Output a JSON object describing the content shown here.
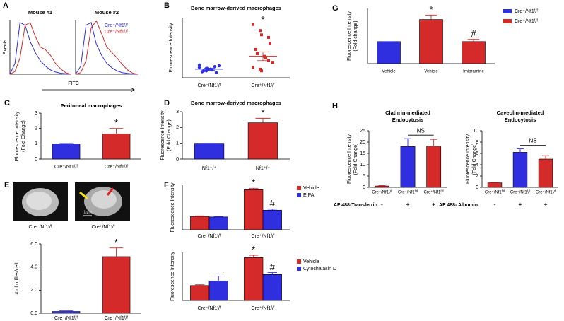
{
  "chart_data": [
    {
      "type": "curves",
      "panel": "A",
      "title": "Mouse #1",
      "ylabel": "Events",
      "xlabel": "FITC",
      "x": [
        0,
        1,
        2,
        3,
        4,
        5,
        6,
        7,
        8,
        9,
        10,
        11,
        12
      ],
      "xlim": [
        0,
        12
      ],
      "ylim": [
        0,
        1
      ],
      "series": [
        {
          "color": "#2f2fe0",
          "values": [
            0,
            0.2,
            0.95,
            0.9,
            0.6,
            0.4,
            0.25,
            0.15,
            0.08,
            0.04,
            0.02,
            0.01,
            0
          ]
        },
        {
          "color": "#d42a2a",
          "values": [
            0,
            0.05,
            0.3,
            0.9,
            0.95,
            0.7,
            0.5,
            0.45,
            0.35,
            0.2,
            0.1,
            0.03,
            0
          ]
        }
      ]
    },
    {
      "type": "curves",
      "title": "Mouse #2",
      "legend": "upper right",
      "x": [
        0,
        1,
        2,
        3,
        4,
        5,
        6,
        7,
        8,
        9,
        10,
        11,
        12
      ],
      "xlim": [
        0,
        12
      ],
      "ylim": [
        0,
        1
      ],
      "series": [
        {
          "name": "Cre⁻/Nf1ᶠ/ᶠ",
          "color": "#2f2fe0",
          "values": [
            0,
            0.15,
            0.9,
            0.95,
            0.55,
            0.35,
            0.2,
            0.12,
            0.06,
            0.03,
            0.015,
            0.005,
            0
          ]
        },
        {
          "name": "Cre⁺/Nf1ᶠ/ᶠ",
          "color": "#d42a2a",
          "values": [
            0,
            0.03,
            0.25,
            0.85,
            0.98,
            0.75,
            0.5,
            0.4,
            0.3,
            0.18,
            0.08,
            0.02,
            0
          ]
        }
      ]
    },
    {
      "type": "strip",
      "panel": "B",
      "title": "Bone marrow-derived macrophages",
      "ylabel": "Fluorescence Intensity",
      "categories": [
        "Cre⁻/Nf1ᶠ/ᶠ",
        "Cre⁺/Nf1ᶠ/ᶠ"
      ],
      "ylim": [
        0,
        70
      ],
      "groups": [
        {
          "color": "#2f2fe0",
          "marker": "circle",
          "values": [
            12,
            11,
            9,
            13,
            6,
            7,
            8,
            10,
            9,
            14,
            15,
            8,
            11
          ]
        },
        {
          "color": "#d42a2a",
          "marker": "square",
          "values": [
            62,
            55,
            50,
            47,
            40,
            33,
            28,
            25,
            23,
            18,
            12,
            10,
            8,
            20
          ]
        }
      ],
      "means": [
        10,
        25
      ],
      "errors": [
        1.2,
        5
      ],
      "markers": [
        null,
        "*"
      ]
    },
    {
      "type": "bar",
      "panel": "C",
      "title": "Peritoneal macrophages",
      "ylabel": [
        "Fluorescence Intensity",
        "(Fold Change)"
      ],
      "categories": [
        "Cre⁻/Nf1ᶠ/ᶠ",
        "Cre⁺/Nf1ᶠ/ᶠ"
      ],
      "values": [
        1,
        1.65
      ],
      "errors": [
        0.02,
        0.35
      ],
      "colors": [
        "#2f2fe0",
        "#d42a2a"
      ],
      "markers": [
        null,
        "*"
      ],
      "ylim": [
        0,
        3
      ],
      "yticks": [
        0,
        1,
        2,
        3
      ]
    },
    {
      "type": "bar",
      "panel": "D",
      "title": "Bone marrow-derived macrophages",
      "ylabel": [
        "Fluorescence Intensity",
        "(Fold Change)"
      ],
      "categories": [
        "Nf1⁺/⁺",
        "Nf1⁺/⁻"
      ],
      "values": [
        1,
        2.3
      ],
      "errors": [
        0,
        0.28
      ],
      "colors": [
        "#2f2fe0",
        "#d42a2a"
      ],
      "markers": [
        null,
        "*"
      ],
      "ylim": [
        0,
        3
      ],
      "yticks": [
        0,
        1,
        2,
        3
      ]
    },
    {
      "type": "bar",
      "ylabel": "# of ruffles/cell",
      "categories": [
        "Cre⁻/Nf1ᶠ/ᶠ",
        "Cre⁺/Nf1ᶠ/ᶠ"
      ],
      "values": [
        0.15,
        4.9
      ],
      "errors": [
        0.05,
        0.75
      ],
      "colors": [
        "#2f2fe0",
        "#d42a2a"
      ],
      "markers": [
        null,
        "*"
      ],
      "ylim": [
        0,
        6
      ],
      "yticks": [
        {
          "value": 0,
          "label": "0.0"
        },
        {
          "value": 2,
          "label": "2.0"
        },
        {
          "value": 4,
          "label": "4.0"
        },
        {
          "value": 6,
          "label": "6.0"
        }
      ]
    },
    {
      "type": "bar",
      "panel": "F",
      "ylabel": "Fluorescence Intensity",
      "legend": "upper right",
      "categories": [
        "Cre⁻/Nf1ᶠ/ᶠ",
        "Cre⁺/Nf1ᶠ/ᶠ"
      ],
      "ylim": [
        0,
        25
      ],
      "series": [
        {
          "name": "Vehicle",
          "color": "#d42a2a",
          "values": [
            7.5,
            22.5
          ],
          "errors": [
            0.3,
            0.8
          ],
          "markers": [
            null,
            "*"
          ]
        },
        {
          "name": "EIPA",
          "color": "#2f2fe0",
          "values": [
            7.2,
            11
          ],
          "errors": [
            0.2,
            0.6
          ],
          "markers": [
            null,
            "#"
          ]
        }
      ]
    },
    {
      "type": "bar",
      "ylabel": "Fluorescence Intensity",
      "legend": "upper right",
      "categories": [
        "Cre⁻/Nf1ᶠ/ᶠ",
        "Cre⁺/Nf1ᶠ/ᶠ"
      ],
      "ylim": [
        0,
        25
      ],
      "series": [
        {
          "name": "Vehicle",
          "color": "#d42a2a",
          "values": [
            7.8,
            22.3
          ],
          "errors": [
            0.4,
            1.2
          ],
          "markers": [
            null,
            "*"
          ]
        },
        {
          "name": "Cytochalasin D",
          "color": "#2f2fe0",
          "values": [
            10.2,
            13.5
          ],
          "errors": [
            2.5,
            1
          ],
          "markers": [
            null,
            "#"
          ]
        }
      ]
    },
    {
      "type": "bar",
      "panel": "G",
      "ylabel": [
        "Fluorescence Intensity",
        "(Fold change)"
      ],
      "categories": [
        "Vehicle",
        "Vehicle",
        "Imipramine"
      ],
      "values": [
        1,
        2,
        1
      ],
      "errors": [
        0,
        0.2,
        0.1
      ],
      "colors": [
        "#2f2fe0",
        "#d42a2a",
        "#d42a2a"
      ],
      "markers": [
        null,
        "*",
        "#"
      ],
      "ylim": [
        0,
        2.5
      ],
      "legend_entries": [
        {
          "name": "Cre⁻/Nf1ᶠ/ᶠ",
          "color": "#2f2fe0"
        },
        {
          "name": "Cre⁺/Nf1ᶠ/ᶠ",
          "color": "#d42a2a"
        }
      ]
    },
    {
      "type": "bar",
      "panel": "H",
      "title": [
        "Clathrin-mediated",
        "Endocytosis"
      ],
      "ylabel": [
        "Fluorescence Intensity",
        "(Fold Change)"
      ],
      "categories": [
        "Cre⁺/Nf1ᶠ/ᶠ",
        "Cre⁻/Nf1ᶠ/ᶠ",
        "Cre⁺/Nf1ᶠ/ᶠ"
      ],
      "values": [
        0.6,
        18,
        18.2
      ],
      "errors": [
        0.2,
        3.5,
        3
      ],
      "colors": [
        "#d42a2a",
        "#2f2fe0",
        "#d42a2a"
      ],
      "ylim": [
        0,
        25
      ],
      "yticks": [
        0,
        5,
        10,
        15,
        20,
        25
      ],
      "bracket": "NS",
      "treatment": {
        "label": "AF 488-Transferrin",
        "values": [
          "-",
          "+",
          "+"
        ]
      }
    },
    {
      "type": "bar",
      "title": [
        "Caveolin-mediated",
        "Endocytosis"
      ],
      "ylabel": [
        "Fluorescence Intensity",
        "(Fold Change)"
      ],
      "categories": [
        "Cre⁺/Nf1ᶠ/ᶠ",
        "Cre⁻/Nf1ᶠ/ᶠ",
        "Cre⁺/Nf1ᶠ/ᶠ"
      ],
      "values": [
        0.8,
        6.2,
        5.0
      ],
      "errors": [
        0.05,
        0.6,
        0.6
      ],
      "colors": [
        "#d42a2a",
        "#2f2fe0",
        "#d42a2a"
      ],
      "ylim": [
        0,
        10
      ],
      "yticks": [
        0,
        2,
        4,
        6,
        8,
        10
      ],
      "bracket": "NS",
      "treatment": {
        "label": "AF 488- Albumin",
        "values": [
          "-",
          "+",
          "+"
        ]
      }
    }
  ],
  "images": {
    "panel": "E",
    "captions": [
      "Cre⁻/Nf1ᶠ/ᶠ",
      "Cre⁺/Nf1ᶠ/ᶠ"
    ],
    "scale_bar": "1 µm"
  }
}
